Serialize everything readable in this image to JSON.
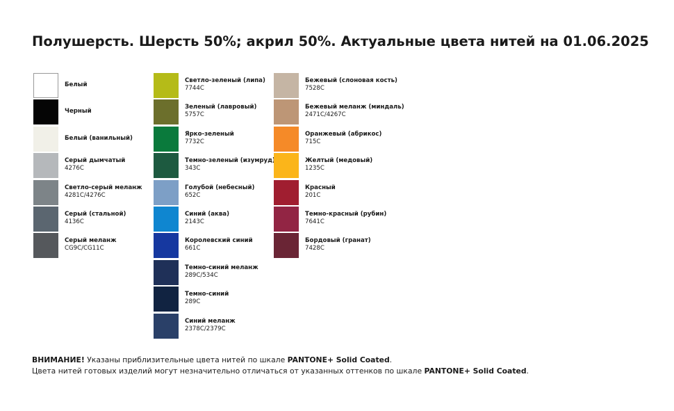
{
  "title": "Полушерсть. Шерсть 50%; акрил 50%. Актуальные цвета нитей на 01.06.2025",
  "columns": [
    [
      {
        "name": "Белый",
        "color": "#ffffff"
      },
      {
        "name": "Черный",
        "color": "#050505"
      },
      {
        "name": "Белый (ванильный)",
        "color": "#f1f0e8"
      },
      {
        "name": "Серый дымчатый",
        "code": "4276C",
        "color": "#b5b8bb"
      },
      {
        "name": "Светло-серый меланж",
        "code": "4281C/4276C",
        "color": "#7d8488"
      },
      {
        "name": "Серый (стальной)",
        "code": "4136C",
        "color": "#5b6670"
      },
      {
        "name": "Серый меланж",
        "code": "CG9C/CG11C",
        "color": "#55585c"
      }
    ],
    [
      {
        "name": "Светло-зеленый (липа)",
        "code": "7744C",
        "color": "#b5bb18"
      },
      {
        "name": "Зеленый (лавровый)",
        "code": "5757C",
        "color": "#6c6f2c"
      },
      {
        "name": "Ярко-зеленый",
        "code": "7732C",
        "color": "#0a7a3c"
      },
      {
        "name": "Темно-зеленый (изумруд)",
        "code": "343C",
        "color": "#1d5a40"
      },
      {
        "name": "Голубой (небесный)",
        "code": "652C",
        "color": "#7d9fc6"
      },
      {
        "name": "Синий (аква)",
        "code": "2143C",
        "color": "#0f86d0"
      },
      {
        "name": "Королевский синий",
        "code": "661C",
        "color": "#1638a0"
      },
      {
        "name": "Темно-синий меланж",
        "code": "289C/534C",
        "color": "#1f3058"
      },
      {
        "name": "Темно-синий",
        "code": "289C",
        "color": "#112341"
      },
      {
        "name": "Синий меланж",
        "code": "2378C/2379C",
        "color": "#2a4068"
      }
    ],
    [
      {
        "name": "Бежевый (слоновая кость)",
        "code": "7528C",
        "color": "#c5b5a4"
      },
      {
        "name": "Бежевый меланж (миндаль)",
        "code": "2471C/4267C",
        "color": "#bd9676"
      },
      {
        "name": "Оранжевый (абрикос)",
        "code": "715C",
        "color": "#f58a28"
      },
      {
        "name": "Желтый (медовый)",
        "code": "1235C",
        "color": "#fbb51a"
      },
      {
        "name": "Красный",
        "code": "201C",
        "color": "#a01e30"
      },
      {
        "name": "Темно-красный (рубин)",
        "code": "7641C",
        "color": "#922544"
      },
      {
        "name": "Бордовый (гранат)",
        "code": "7428C",
        "color": "#6a2535"
      }
    ]
  ],
  "footer": [
    [
      {
        "text": "ВНИМАНИЕ!",
        "bold": true
      },
      {
        "text": " Указаны приблизительные цвета нитей по шкале "
      },
      {
        "text": "PANTONE+ Solid Coated",
        "bold": true
      },
      {
        "text": "."
      }
    ],
    [
      {
        "text": "Цвета нитей готовых изделий могут незначительно отличаться от указанных оттенков по шкале "
      },
      {
        "text": "PANTONE+ Solid Coated",
        "bold": true
      },
      {
        "text": "."
      }
    ]
  ]
}
